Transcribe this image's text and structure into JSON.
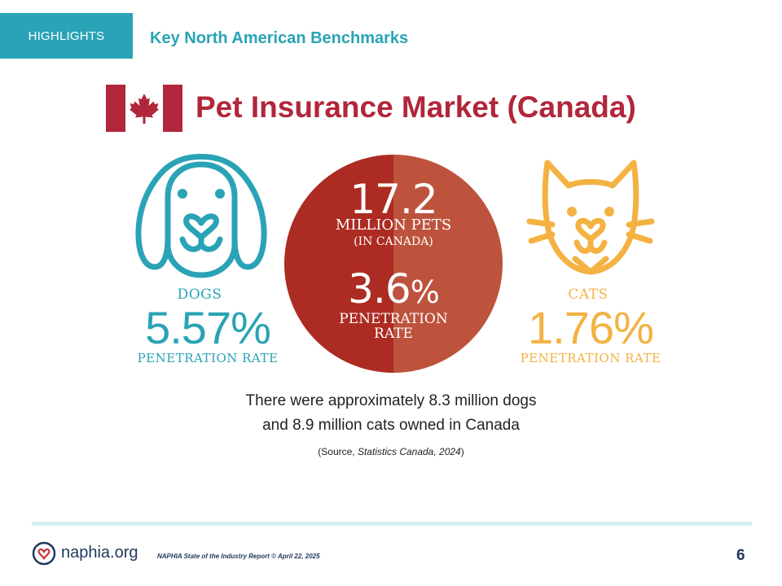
{
  "header": {
    "tab_label": "HIGHLIGHTS",
    "subtitle": "Key North American Benchmarks"
  },
  "title": "Pet Insurance Market (Canada)",
  "colors": {
    "teal": "#2aa3b6",
    "red": "#b1263a",
    "gold": "#f3b242",
    "circle_dark": "#ac2b22",
    "circle_light": "#bd533d"
  },
  "dogs": {
    "label": "DOGS",
    "rate": "5.57%",
    "rate_label": "PENETRATION RATE",
    "icon": "dog-icon"
  },
  "cats": {
    "label": "CATS",
    "rate": "1.76%",
    "rate_label": "PENETRATION RATE",
    "icon": "cat-icon"
  },
  "center": {
    "pets_number": "17.2",
    "pets_label": "MILLION PETS",
    "pets_sublabel": "(IN CANADA)",
    "rate_number": "3.6",
    "rate_percent": "%",
    "rate_label_line1": "PENETRATION",
    "rate_label_line2": "RATE"
  },
  "note": {
    "line1": "There were approximately 8.3 million dogs",
    "line2": "and 8.9 million cats owned in Canada"
  },
  "source": {
    "prefix": "(Source, ",
    "name": "Statistics Canada, 2024",
    "suffix": ")"
  },
  "footer": {
    "logo_text": "naphia.org",
    "report": "NAPHIA State of the Industry Report © April 22, 2025",
    "page_number": "6"
  }
}
